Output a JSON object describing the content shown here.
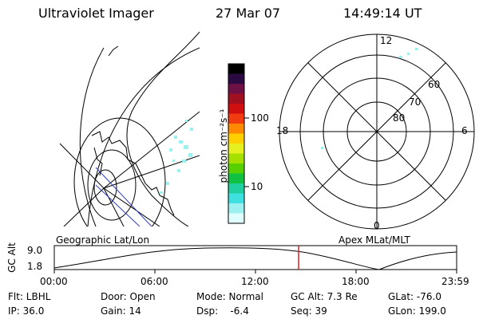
{
  "header": {
    "instrument": "Ultraviolet Imager",
    "date": "27 Mar 07",
    "time": "14:49:14 UT"
  },
  "colorbar": {
    "unit_label": "photon cm⁻²s⁻¹",
    "ticks": [
      "100",
      "10"
    ],
    "colors": [
      "#000000",
      "#2a0a40",
      "#6e1046",
      "#a01020",
      "#d01010",
      "#f03c10",
      "#ff8a00",
      "#ffd000",
      "#e6f020",
      "#a6e000",
      "#58d000",
      "#10c040",
      "#20d0a0",
      "#40e0e0",
      "#9cf0f0",
      "#e0ffff"
    ]
  },
  "geo_map": {
    "label": "Geographic Lat/Lon"
  },
  "polar_plot": {
    "label": "Apex MLat/MLT",
    "mlt_labels": [
      "12",
      "18",
      "6",
      "0"
    ],
    "mlat_labels": [
      "60",
      "70",
      "80"
    ]
  },
  "altitude_strip": {
    "ylabel": "GC Alt",
    "ymax_label": "9.0",
    "ymin_label": "1.8",
    "x_labels": [
      "00:00",
      "06:00",
      "12:00",
      "18:00",
      "23:59"
    ],
    "marker_color": "#e02020"
  },
  "status": {
    "row1": {
      "flt": "Flt: LBHL",
      "door": "Door: Open",
      "mode": "Mode: Normal",
      "gc_alt": "GC Alt: 7.3 Re",
      "glat": "GLat: -76.0"
    },
    "row2": {
      "ip": "IP: 36.0",
      "gain": "Gain: 14",
      "dsp": "Dsp:    -6.4",
      "seq": "Seq: 39",
      "glon": "GLon: 199.0"
    }
  }
}
